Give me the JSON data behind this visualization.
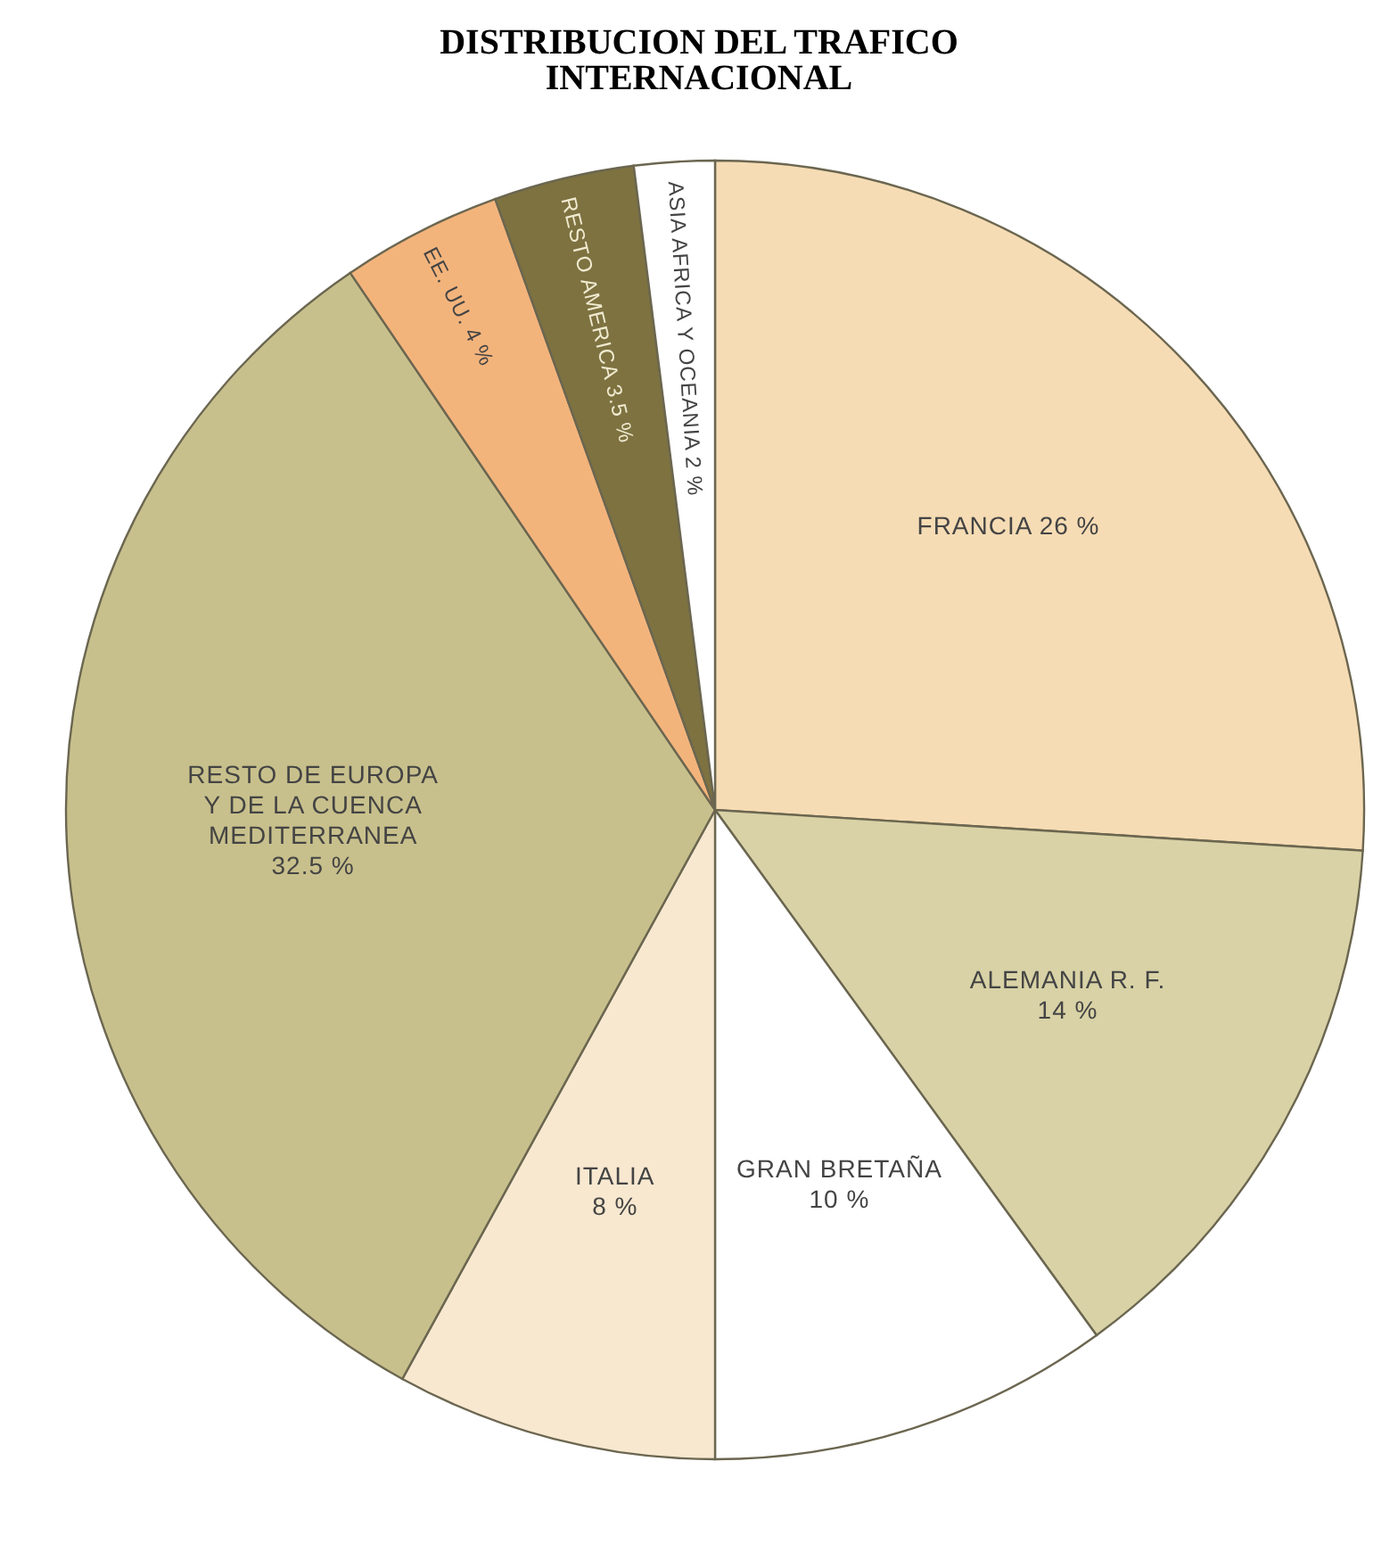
{
  "chart_data": {
    "type": "pie",
    "title": "DISTRIBUCION DEL TRAFICO INTERNACIONAL",
    "categories": [
      "FRANCIA",
      "ALEMANIA R. F.",
      "GRAN BRETAÑA",
      "ITALIA",
      "RESTO DE EUROPA Y DE LA CUENCA MEDITERRANEA",
      "EE. UU.",
      "RESTO AMERICA",
      "ASIA AFRICA Y OCEANIA"
    ],
    "values": [
      26,
      14,
      10,
      8,
      32.5,
      4,
      3.5,
      2
    ],
    "value_labels": [
      "26 %",
      "14 %",
      "10 %",
      "8 %",
      "32.5 %",
      "4 %",
      "3.5 %",
      "2 %"
    ],
    "colors": [
      "#f6dcb4",
      "#d8d2a6",
      "#ffffff",
      "#f8e8d0",
      "#c8c08c",
      "#f3b47c",
      "#7d7240",
      "#ffffff"
    ],
    "legend": false
  }
}
